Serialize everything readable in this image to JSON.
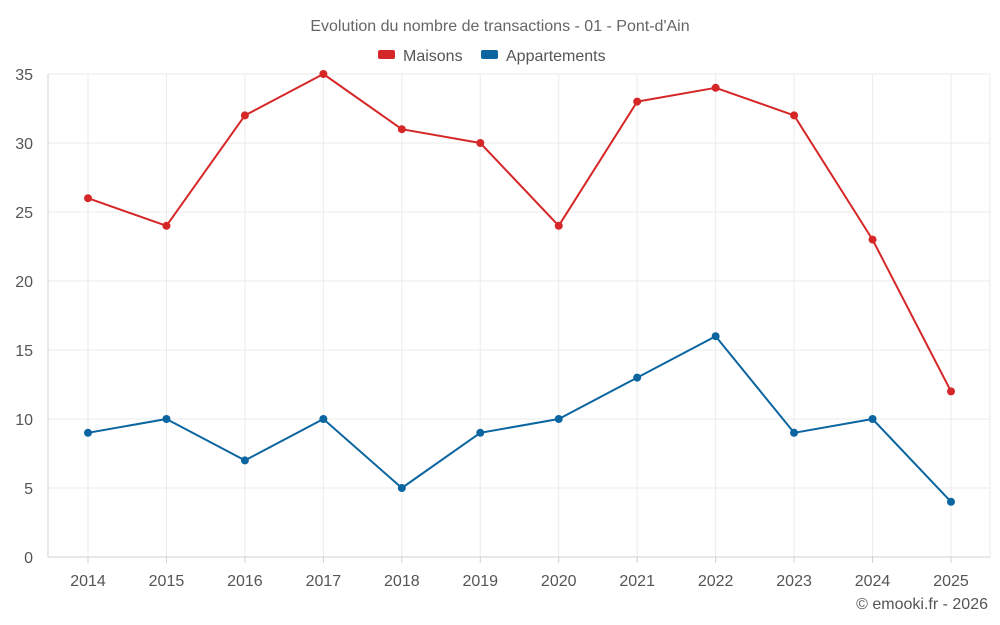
{
  "chart_data": {
    "type": "line",
    "title": "Evolution du nombre de transactions - 01 - Pont-d'Ain",
    "categories": [
      "2014",
      "2015",
      "2016",
      "2017",
      "2018",
      "2019",
      "2020",
      "2021",
      "2022",
      "2023",
      "2024",
      "2025"
    ],
    "series": [
      {
        "name": "Maisons",
        "color": "#d62728",
        "values": [
          26,
          24,
          32,
          35,
          31,
          30,
          24,
          33,
          34,
          32,
          23,
          12
        ]
      },
      {
        "name": "Appartements",
        "color": "#0b65a0",
        "values": [
          9,
          10,
          7,
          10,
          5,
          9,
          10,
          13,
          16,
          9,
          10,
          4
        ]
      }
    ],
    "ylim": [
      0,
      35
    ],
    "yticks": [
      0,
      5,
      10,
      15,
      20,
      25,
      30,
      35
    ],
    "legend_position": "top-center",
    "grid": true
  },
  "footer": {
    "credit": "© emooki.fr - 2026"
  }
}
